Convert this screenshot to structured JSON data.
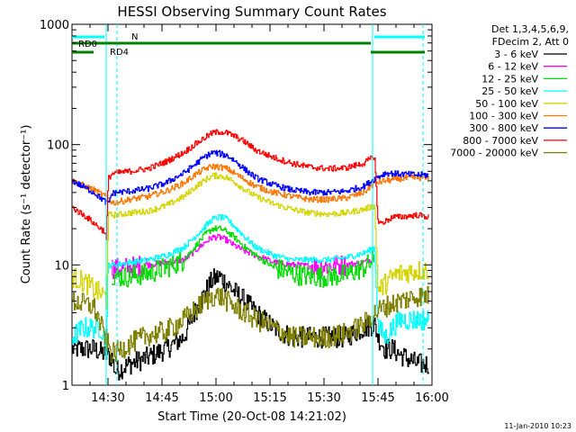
{
  "chart_data": {
    "type": "line",
    "title": "HESSI Observing Summary Count Rates",
    "xlabel": "Start Time (20-Oct-08 14:21:02)",
    "ylabel": "Count Rate (s⁻¹ detector⁻¹)",
    "y_scale": "log",
    "ylim": [
      1,
      1000
    ],
    "xlim_minutes": [
      -1,
      99
    ],
    "x_ticks": [
      {
        "label": "14:30",
        "t": 9
      },
      {
        "label": "14:45",
        "t": 24
      },
      {
        "label": "15:00",
        "t": 39
      },
      {
        "label": "15:15",
        "t": 54
      },
      {
        "label": "15:30",
        "t": 69
      },
      {
        "label": "15:45",
        "t": 84
      },
      {
        "label": "16:00",
        "t": 99
      }
    ],
    "y_ticks": [
      {
        "label": "1",
        "v": 1
      },
      {
        "label": "10",
        "v": 10
      },
      {
        "label": "100",
        "v": 100
      },
      {
        "label": "1000",
        "v": 1000
      }
    ],
    "legend_header": [
      "Det 1,3,4,5,6,9,",
      "FDecim 2, Att 0"
    ],
    "legend_position": "right",
    "series": [
      {
        "name": "3 - 6 keV",
        "color": "#000000",
        "x": [
          -1,
          5,
          10,
          11,
          15,
          20,
          25,
          30,
          33,
          36,
          38,
          40,
          42,
          44,
          47,
          50,
          55,
          60,
          65,
          70,
          75,
          80,
          83,
          84,
          86,
          88,
          90,
          95,
          98
        ],
        "y": [
          2,
          2,
          1.7,
          1.3,
          1.5,
          1.7,
          2,
          2.5,
          4,
          6,
          7.5,
          8,
          7,
          6,
          5,
          4,
          3,
          2.5,
          2.5,
          2.5,
          2.5,
          3,
          3.2,
          2.5,
          2,
          2,
          1.8,
          1.5,
          1.5
        ]
      },
      {
        "name": "6 - 12 keV",
        "color": "#ff00ff",
        "x": [
          10,
          11,
          15,
          20,
          25,
          30,
          33,
          36,
          38,
          40,
          42,
          44,
          47,
          50,
          55,
          60,
          65,
          70,
          75,
          80,
          83
        ],
        "y": [
          9.5,
          9.3,
          9.5,
          10,
          10.5,
          11,
          13,
          15.5,
          17,
          17,
          16,
          14.5,
          13,
          12,
          10.5,
          10,
          9.8,
          9.8,
          10,
          10.5,
          11.5
        ]
      },
      {
        "name": "12 - 25 keV",
        "color": "#00dd00",
        "x": [
          10,
          11,
          15,
          20,
          25,
          30,
          33,
          36,
          38,
          40,
          42,
          44,
          47,
          50,
          55,
          60,
          65,
          70,
          75,
          80,
          83
        ],
        "y": [
          8.5,
          8,
          8,
          8.5,
          9.5,
          11,
          14,
          18,
          20,
          20,
          19,
          17,
          14,
          12,
          9.5,
          8.5,
          8,
          8,
          8.3,
          9.5,
          11
        ]
      },
      {
        "name": "25 - 50 keV",
        "color": "#00ffff",
        "x": [
          -1,
          2,
          5,
          7,
          8,
          8.5,
          9,
          10,
          11,
          15,
          20,
          25,
          30,
          33,
          36,
          38,
          40,
          42,
          44,
          47,
          50,
          55,
          60,
          65,
          70,
          75,
          80,
          83,
          84,
          86,
          88,
          90,
          95,
          98
        ],
        "y": [
          2.5,
          3,
          3,
          3,
          2.5,
          2,
          10,
          10,
          10,
          10.5,
          11,
          12,
          14,
          17,
          21,
          24,
          25,
          24,
          21,
          17,
          14,
          12,
          11,
          11,
          11,
          11.5,
          12.5,
          14,
          3,
          2.5,
          3,
          3.5,
          3.5,
          3.5
        ]
      },
      {
        "name": "50 - 100 keV",
        "color": "#d4d400",
        "x": [
          -1,
          3,
          6,
          8,
          8.5,
          9,
          10,
          11,
          15,
          20,
          25,
          30,
          33,
          36,
          38,
          40,
          42,
          44,
          47,
          50,
          55,
          60,
          65,
          70,
          75,
          80,
          83,
          84,
          86,
          88,
          90,
          95,
          98
        ],
        "y": [
          8,
          7,
          6,
          5.5,
          5,
          26,
          26,
          26,
          27,
          28,
          31,
          37,
          44,
          51,
          55,
          55,
          53,
          49,
          42,
          37,
          32,
          29,
          27,
          26.5,
          27,
          29,
          31,
          6,
          7,
          8,
          8.5,
          9,
          9
        ]
      },
      {
        "name": "100 - 300 keV",
        "color": "#ff7700",
        "x": [
          -1,
          5,
          9,
          10,
          11,
          15,
          20,
          25,
          30,
          33,
          36,
          38,
          40,
          42,
          44,
          47,
          50,
          55,
          60,
          65,
          70,
          75,
          80,
          83,
          86,
          90,
          95,
          98
        ],
        "y": [
          50,
          42,
          36,
          33,
          33,
          35,
          37,
          41,
          48,
          56,
          63,
          66,
          65,
          63,
          58,
          51,
          45,
          40,
          37,
          35,
          35,
          36,
          40,
          48,
          50,
          52,
          53,
          53
        ]
      },
      {
        "name": "300 - 800 keV",
        "color": "#0000ff",
        "x": [
          -1,
          5,
          9,
          10,
          11,
          15,
          20,
          25,
          30,
          33,
          36,
          38,
          40,
          42,
          44,
          47,
          50,
          55,
          60,
          65,
          70,
          75,
          80,
          83,
          86,
          90,
          95,
          98
        ],
        "y": [
          50,
          40,
          32,
          39,
          40,
          41,
          43,
          48,
          58,
          68,
          80,
          86,
          84,
          81,
          74,
          62,
          53,
          46,
          42,
          40,
          40,
          41,
          45,
          52,
          58,
          57,
          56,
          56
        ]
      },
      {
        "name": "800 - 7000 keV",
        "color": "#ff0000",
        "x": [
          -1,
          3,
          6,
          8,
          8.5,
          9,
          10,
          11,
          15,
          20,
          25,
          30,
          33,
          36,
          38,
          40,
          42,
          44,
          47,
          50,
          55,
          60,
          65,
          70,
          75,
          80,
          83,
          84,
          86,
          88,
          90,
          95,
          98
        ],
        "y": [
          30,
          25,
          21,
          19,
          16,
          52,
          57,
          58,
          60,
          63,
          72,
          86,
          100,
          115,
          125,
          128,
          125,
          118,
          105,
          90,
          78,
          70,
          65,
          63,
          64,
          70,
          80,
          22,
          23,
          25,
          25,
          26,
          25
        ]
      },
      {
        "name": "7000 - 20000 keV",
        "color": "#808000",
        "x": [
          -1,
          5,
          10,
          15,
          20,
          25,
          30,
          33,
          36,
          38,
          40,
          42,
          44,
          47,
          50,
          55,
          60,
          65,
          70,
          75,
          80,
          83,
          86,
          90,
          95,
          98
        ],
        "y": [
          5,
          4.5,
          1.8,
          2.2,
          2.6,
          2.8,
          3.5,
          4.2,
          5,
          5.5,
          5.5,
          5,
          4.5,
          4,
          3.5,
          3,
          2.5,
          2.5,
          2.5,
          2.7,
          3.2,
          4,
          4.5,
          5,
          5.5,
          5.5
        ]
      }
    ],
    "attenuator_bars": [
      {
        "label": "RD0",
        "color": "#008000",
        "segments": [
          {
            "x0": -1,
            "x1": 6
          },
          {
            "x0": 6,
            "x1": 82
          }
        ]
      },
      {
        "label": "RD4",
        "color": "#008000",
        "segments": [
          {
            "x0": -1,
            "x1": 5
          },
          {
            "x0": 82,
            "x1": 97
          }
        ]
      },
      {
        "label": "N",
        "color": "#00ffff",
        "segments": [
          {
            "x0": -1,
            "x1": 8
          },
          {
            "x0": 83,
            "x1": 97
          }
        ]
      }
    ],
    "vertical_lines": [
      {
        "t": 8.5,
        "color": "#00ffff",
        "style": "solid"
      },
      {
        "t": 11.5,
        "color": "#00ffff",
        "style": "dashed"
      },
      {
        "t": 82.5,
        "color": "#00ffff",
        "style": "solid"
      },
      {
        "t": 96.5,
        "color": "#00ffff",
        "style": "dashed"
      }
    ],
    "footer_date": "11-Jan-2010 10:23"
  }
}
